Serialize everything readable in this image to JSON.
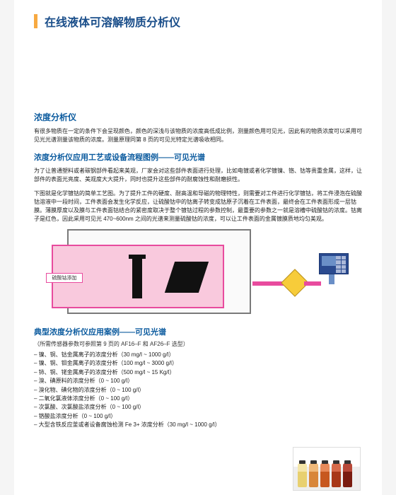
{
  "colors": {
    "accent_orange": "#f7a941",
    "title_blue": "#1a4e8a",
    "heading_blue": "#0a5a9e",
    "diagram_pink_border": "#e84b9e",
    "diagram_pink_fill": "#f9c9dd",
    "diagram_gray_border": "#7a7a7a",
    "sensor_yellow": "#f7cc3a",
    "meter_blue": "#2a4a8f"
  },
  "typography": {
    "main_title_pt": 16,
    "section_title_pt": 12,
    "sub_title_pt": 11,
    "body_pt": 8
  },
  "header": {
    "main_title": "在线液体可溶解物质分析仪"
  },
  "section1": {
    "title": "浓度分析仪",
    "para": "有很多物质在一定的条件下会呈现颜色，颜色的深浅与该物质的浓度高低成比例，测量颜色用可见光，因此有的物质浓度可以采用可见光光谱测量该物质的浓度。测量原理同第 8 页的可见光特定光谱吸收相同。"
  },
  "section2": {
    "title": "浓度分析仪应用工艺或设备流程图例——可见光谱",
    "para1": "为了让普通塑料或者碳钢部件看起来美观，厂家会对这些部件表面进行处理，比如电镀或者化学镀镍、铬、钴等贵重金属，这样，让部件的表面光亮度、美观度大大提升，同时也提升这些部件的耐腐蚀性和耐磨损性。",
    "para2": "下图就是化学镀钴的简单工艺图。为了提升工件的硬度、耐高温和导磁的物理特性，则需要对工件进行化学镀钴，将工件浸泡在硫酸钴溶液中一段时间，工件表面会发生化学反应，让硫酸钴中的钴离子转变成钴原子沉着在工件表面，最终会在工件表面形成一层钴膜。薄膜厚度以及膜与工件表面钴结合的紧密度取决于整个镀钴过程的参数控制，最重要的参数之一就是溶槽中硫酸钴的浓度。钴离子是红色，因此采用可见光 470~600nm 之间的光谱来测量硫酸钴的浓度，可以让工件表面的金属镀膜质地均匀美观。"
  },
  "diagram": {
    "label": "硫酸钴添加",
    "wavelength_range_nm": [
      470,
      600
    ],
    "tank_border_color": "#7a7a7a",
    "liquid_border_color": "#e84b9e",
    "liquid_fill_color": "#f9c9dd",
    "sensor_color": "#f7cc3a",
    "meter_color": "#2a4a8f"
  },
  "section3": {
    "title": "典型浓度分析仪应用案例——可见光谱",
    "note": "（所需传感器参数可参照第 9 页的 AF16–F 和 AF26–F 选型）",
    "items": [
      "镍、铜、钴金属离子的浓度分析（30 mg/l ~ 1000 g/l）",
      "镍、铜、钼金属离子的浓度分析（100 mg/l ~ 3000 g/l）",
      "铈、铜、铑金属离子的浓度分析（500 mg/l ~ 15 Kg/l）",
      "溴、碘原料的浓度分析（0 ~ 100 g/l）",
      "溴化物、碘化物的浓度分析（0 ~ 100 g/l）",
      "二氧化氯液体浓度分析（0 ~ 100 g/l）",
      "次氯酸、次氯酸盐浓度分析（0 ~ 100 g/l）",
      "铬酸盐浓度分析（0 ~ 100 g/l）",
      "大型含铁反应釜或者设备腐蚀检测 Fe 3+ 浓度分析（30 mg/l ~ 1000 g/l）"
    ]
  }
}
